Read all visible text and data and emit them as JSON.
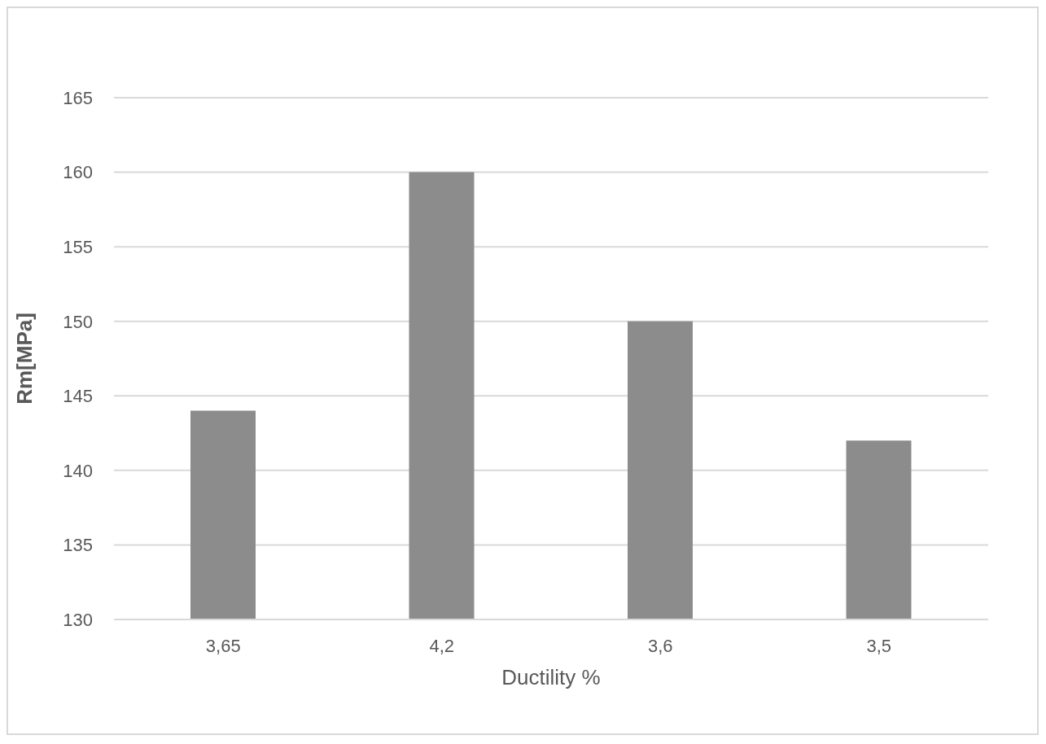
{
  "chart_data": {
    "type": "bar",
    "xlabel": "Ductility %",
    "ylabel": "Rm[MPa]",
    "categories": [
      "3,65",
      "4,2",
      "3,6",
      "3,5"
    ],
    "values": [
      144,
      160,
      150,
      142
    ],
    "color": "#8c8c8c",
    "ylim": [
      130,
      165
    ],
    "yticks": [
      130,
      135,
      140,
      145,
      150,
      155,
      160,
      165
    ],
    "grid": "y"
  }
}
